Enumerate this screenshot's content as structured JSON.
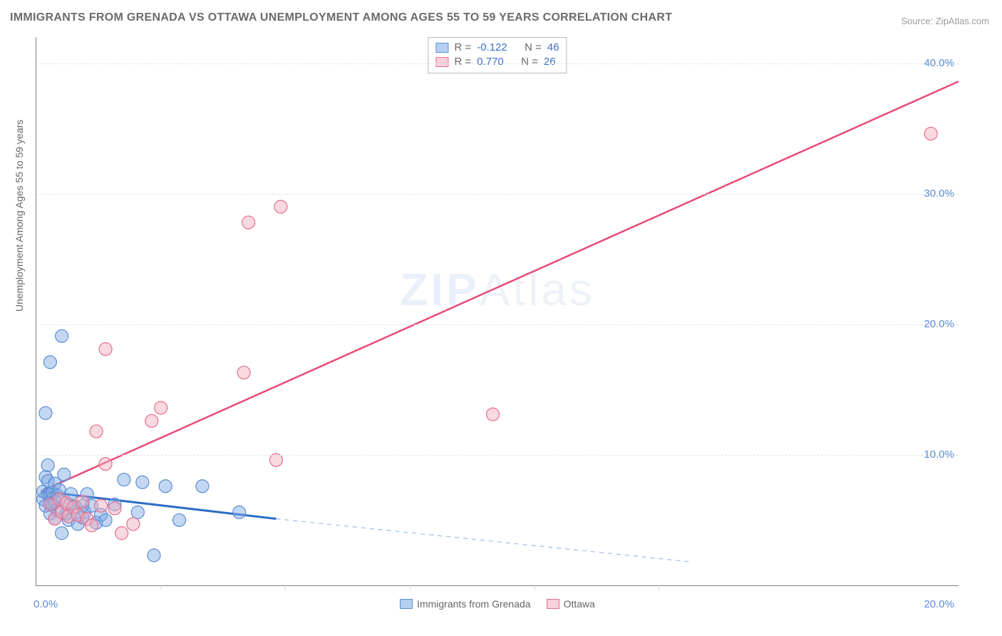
{
  "title": "IMMIGRANTS FROM GRENADA VS OTTAWA UNEMPLOYMENT AMONG AGES 55 TO 59 YEARS CORRELATION CHART",
  "source": "Source: ZipAtlas.com",
  "watermark_a": "ZIP",
  "watermark_b": "Atlas",
  "chart": {
    "type": "scatter",
    "background_color": "#ffffff",
    "grid_color": "#e2e2e2",
    "axis_color": "#808080",
    "marker_radius": 9,
    "y_axis_label": "Unemployment Among Ages 55 to 59 years",
    "y_axis_label_fontsize": 14,
    "x_range": [
      0,
      20
    ],
    "y_range": [
      0,
      42
    ],
    "y_ticks": [
      10,
      20,
      30,
      40
    ],
    "y_tick_labels": [
      "10.0%",
      "20.0%",
      "30.0%",
      "40.0%"
    ],
    "x_ticks": [
      0,
      20
    ],
    "x_tick_labels": [
      "0.0%",
      "20.0%"
    ],
    "x_minor_gridlines": [
      2.7,
      5.4,
      8.1,
      10.8,
      13.5
    ],
    "tick_label_color": "#5a8dd6",
    "tick_label_fontsize": 15,
    "series": [
      {
        "name": "Immigrants from Grenada",
        "color_fill": "rgba(122,167,226,0.45)",
        "color_stroke": "#5a8dd6",
        "R": "-0.122",
        "N": "46",
        "trend": {
          "solid_from": [
            0.1,
            7.2
          ],
          "solid_to": [
            5.2,
            5.1
          ],
          "dashed_to": [
            14.2,
            1.8
          ],
          "solid_color": "#2e6dc4",
          "solid_width": 3,
          "dashed_color": "#9cbde6",
          "dashed_pattern": "6 6"
        },
        "points": [
          [
            0.15,
            6.6
          ],
          [
            0.15,
            7.2
          ],
          [
            0.2,
            6.1
          ],
          [
            0.2,
            8.3
          ],
          [
            0.2,
            13.2
          ],
          [
            0.25,
            7.0
          ],
          [
            0.25,
            8.0
          ],
          [
            0.25,
            9.2
          ],
          [
            0.3,
            5.5
          ],
          [
            0.3,
            6.3
          ],
          [
            0.3,
            7.0
          ],
          [
            0.3,
            17.1
          ],
          [
            0.35,
            6.2
          ],
          [
            0.35,
            7.1
          ],
          [
            0.4,
            5.1
          ],
          [
            0.4,
            6.4
          ],
          [
            0.4,
            7.8
          ],
          [
            0.45,
            5.8
          ],
          [
            0.45,
            6.9
          ],
          [
            0.5,
            7.3
          ],
          [
            0.55,
            4.0
          ],
          [
            0.55,
            19.1
          ],
          [
            0.6,
            8.5
          ],
          [
            0.65,
            5.5
          ],
          [
            0.7,
            5.0
          ],
          [
            0.7,
            6.2
          ],
          [
            0.75,
            7.0
          ],
          [
            0.85,
            6.0
          ],
          [
            0.9,
            4.7
          ],
          [
            1.0,
            5.2
          ],
          [
            1.0,
            6.1
          ],
          [
            1.05,
            5.6
          ],
          [
            1.1,
            7.0
          ],
          [
            1.2,
            6.1
          ],
          [
            1.3,
            4.8
          ],
          [
            1.4,
            5.4
          ],
          [
            1.5,
            5.0
          ],
          [
            1.7,
            6.2
          ],
          [
            1.9,
            8.1
          ],
          [
            2.2,
            5.6
          ],
          [
            2.3,
            7.9
          ],
          [
            2.55,
            2.3
          ],
          [
            2.8,
            7.6
          ],
          [
            3.1,
            5.0
          ],
          [
            3.6,
            7.6
          ],
          [
            4.4,
            5.6
          ]
        ]
      },
      {
        "name": "Ottawa",
        "color_fill": "rgba(242,170,187,0.45)",
        "color_stroke": "#e66d8e",
        "R": "0.770",
        "N": "26",
        "trend": {
          "solid_from": [
            0.1,
            7.2
          ],
          "solid_to": [
            20.0,
            38.6
          ],
          "solid_color": "#e84c78",
          "solid_width": 2.5
        },
        "points": [
          [
            0.3,
            6.2
          ],
          [
            0.4,
            5.1
          ],
          [
            0.5,
            6.6
          ],
          [
            0.55,
            5.6
          ],
          [
            0.65,
            6.3
          ],
          [
            0.7,
            5.3
          ],
          [
            0.8,
            6.0
          ],
          [
            0.9,
            5.4
          ],
          [
            1.0,
            6.4
          ],
          [
            1.1,
            5.1
          ],
          [
            1.2,
            4.6
          ],
          [
            1.3,
            11.8
          ],
          [
            1.4,
            6.1
          ],
          [
            1.5,
            9.3
          ],
          [
            1.5,
            18.1
          ],
          [
            1.7,
            5.9
          ],
          [
            1.85,
            4.0
          ],
          [
            2.1,
            4.7
          ],
          [
            2.5,
            12.6
          ],
          [
            2.7,
            13.6
          ],
          [
            4.5,
            16.3
          ],
          [
            4.6,
            27.8
          ],
          [
            5.2,
            9.6
          ],
          [
            5.3,
            29.0
          ],
          [
            9.9,
            13.1
          ],
          [
            19.4,
            34.6
          ]
        ]
      }
    ],
    "legend_top": {
      "rows": [
        {
          "swatch": "blue",
          "R_label": "R = ",
          "R": "-0.122",
          "N_label": "N = ",
          "N": "46"
        },
        {
          "swatch": "pink",
          "R_label": "R = ",
          "R": "0.770",
          "N_label": "N = ",
          "N": "26"
        }
      ]
    },
    "legend_bottom": {
      "items": [
        {
          "swatch": "blue",
          "label": "Immigrants from Grenada"
        },
        {
          "swatch": "pink",
          "label": "Ottawa"
        }
      ]
    }
  }
}
